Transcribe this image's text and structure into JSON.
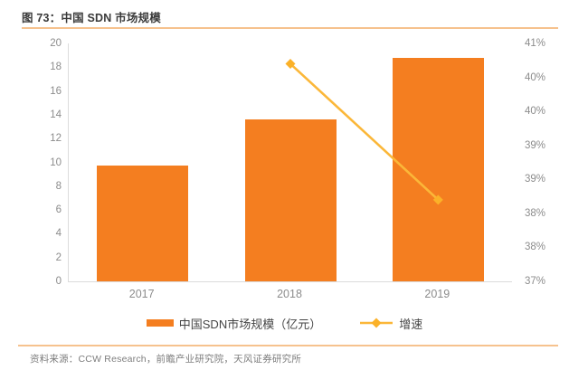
{
  "figure": {
    "title": "图 73：中国 SDN 市场规模",
    "source": "资料来源：CCW Research，前瞻产业研究院，天风证券研究所"
  },
  "colors": {
    "bar": "#f47e20",
    "line": "#fbb739",
    "marker": "#fbb128",
    "divider_rule": "#f6c28e",
    "axis_line": "#dcdcdc",
    "tick_text": "#8c8c8c",
    "title_text": "#3a3a3a",
    "legend_text": "#454545",
    "source_text": "#7d7d7d"
  },
  "chart_data": {
    "type": "bar",
    "subtype": "bar-line-combo",
    "categories": [
      "2017",
      "2018",
      "2019"
    ],
    "series": [
      {
        "name": "中国SDN市场规模（亿元）",
        "type": "bar",
        "axis": "left",
        "values": [
          9.7,
          13.6,
          18.8
        ]
      },
      {
        "name": "增速",
        "type": "line",
        "axis": "right",
        "unit": "%",
        "values": [
          null,
          40.2,
          38.2
        ]
      }
    ],
    "left_axis": {
      "min": 0,
      "max": 20,
      "step": 2,
      "tick_labels_top_to_bottom": [
        "20",
        "18",
        "16",
        "14",
        "12",
        "10",
        "8",
        "6",
        "4",
        "2",
        "0"
      ]
    },
    "right_axis": {
      "min": 37,
      "max": 40.5,
      "step": 0.5,
      "tick_labels_top_to_bottom": [
        "41%",
        "40%",
        "40%",
        "39%",
        "39%",
        "38%",
        "38%",
        "37%"
      ]
    },
    "grid": false,
    "legend_position": "bottom"
  }
}
